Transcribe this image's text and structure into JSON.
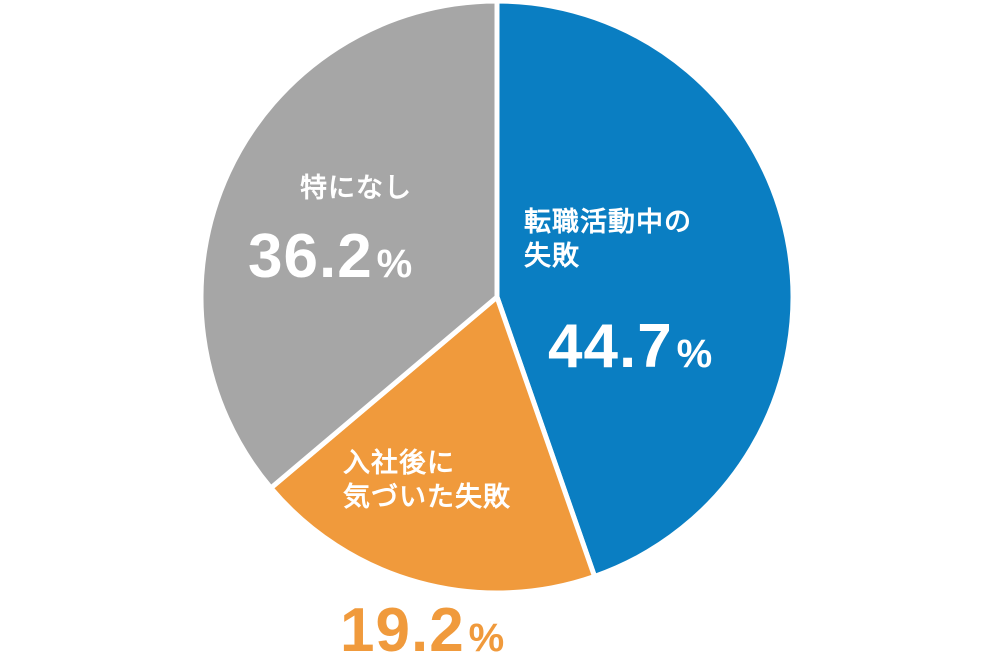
{
  "chart_data": {
    "type": "pie",
    "title": "",
    "start_angle_deg": 0,
    "direction": "clockwise",
    "slices": [
      {
        "label": "転職活動中の失敗",
        "label_lines": [
          "転職活動中の",
          "失敗"
        ],
        "value": 44.7,
        "value_text": "44.7",
        "unit": "%",
        "color": "#0a7ec2",
        "label_color": "#ffffff"
      },
      {
        "label": "入社後に気づいた失敗",
        "label_lines": [
          "入社後に",
          "気づいた失敗"
        ],
        "value": 19.2,
        "value_text": "19.2",
        "unit": "%",
        "color": "#f09a3c",
        "label_color": "#ffffff",
        "value_color": "#f09a3c"
      },
      {
        "label": "特になし",
        "label_lines": [
          "特になし"
        ],
        "value": 36.2,
        "value_text": "36.2",
        "unit": "%",
        "color": "#a6a6a6",
        "label_color": "#ffffff"
      }
    ],
    "legend": "none",
    "separator_color": "#ffffff"
  }
}
